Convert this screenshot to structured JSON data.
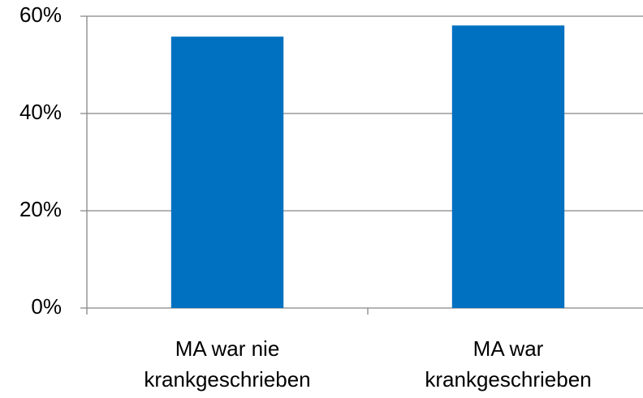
{
  "chart_data": {
    "type": "bar",
    "categories": [
      [
        "MA war nie",
        "krankgeschrieben"
      ],
      [
        "MA war",
        "krankgeschrieben"
      ]
    ],
    "values": [
      55.8,
      58.1
    ],
    "color": "#0070c0",
    "ylim": [
      0,
      60
    ],
    "yticks": [
      {
        "value": 0,
        "label": "0%"
      },
      {
        "value": 20,
        "label": "20%"
      },
      {
        "value": 40,
        "label": "40%"
      },
      {
        "value": 60,
        "label": "60%"
      }
    ],
    "grid": true
  }
}
